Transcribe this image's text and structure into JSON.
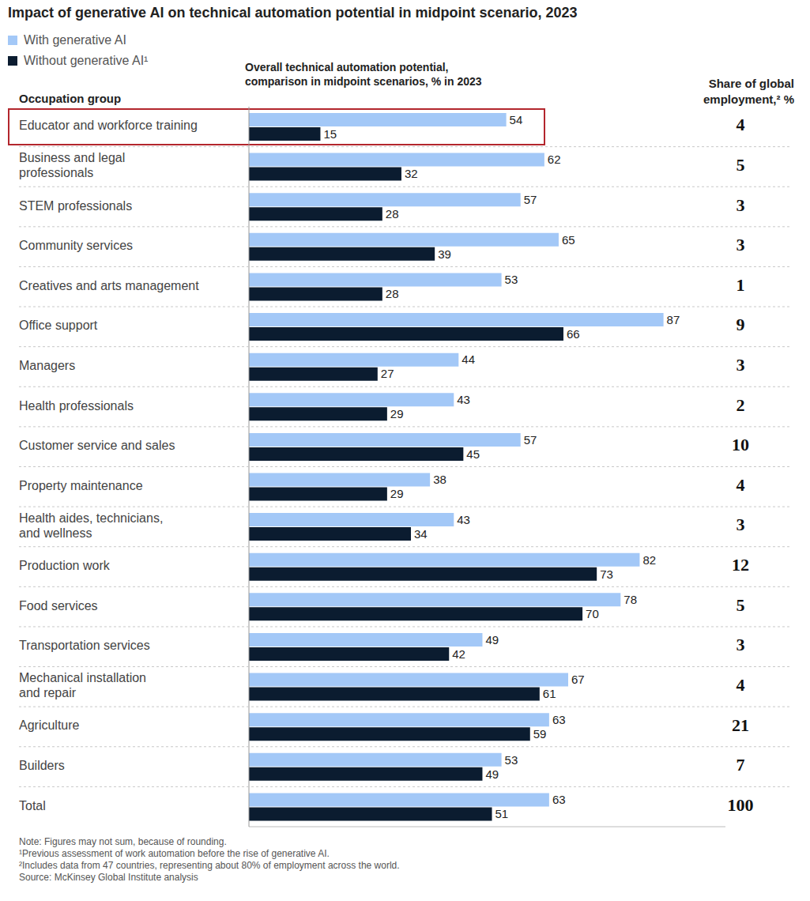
{
  "chart_data": {
    "type": "bar",
    "orientation": "horizontal",
    "title": "Impact of generative AI on technical automation potential in midpoint scenario, 2023",
    "y_label": "Occupation group",
    "x_label": "Overall technical automation potential, comparison in midpoint scenarios, % in 2023",
    "categories": [
      "Educator and workforce training",
      "Business and legal professionals",
      "STEM professionals",
      "Community services",
      "Creatives and arts management",
      "Office support",
      "Managers",
      "Health professionals",
      "Customer service and sales",
      "Property maintenance",
      "Health aides, technicians, and wellness",
      "Production work",
      "Food services",
      "Transportation services",
      "Mechanical installation and repair",
      "Agriculture",
      "Builders",
      "Total"
    ],
    "series": [
      {
        "name": "With generative AI",
        "color": "#a3c8f7",
        "values": [
          54,
          62,
          57,
          65,
          53,
          87,
          44,
          43,
          57,
          38,
          43,
          82,
          78,
          49,
          67,
          63,
          53,
          63
        ]
      },
      {
        "name": "Without generative AI¹",
        "color": "#0b1c30",
        "values": [
          15,
          32,
          28,
          39,
          28,
          66,
          27,
          29,
          45,
          29,
          34,
          73,
          70,
          42,
          61,
          59,
          49,
          51
        ]
      }
    ],
    "share_of_global_employment": {
      "label": "Share of global employment,² %",
      "values": [
        4,
        5,
        3,
        3,
        1,
        9,
        3,
        2,
        10,
        4,
        3,
        12,
        5,
        3,
        4,
        21,
        7,
        100
      ]
    },
    "xlim": [
      0,
      100
    ],
    "legend": "top-left",
    "data_labels": true,
    "tick_labels": "y",
    "notes": [
      "Note: Figures may not sum, because of rounding.",
      "¹Previous assessment of work automation before the rise of generative AI.",
      "²Includes data from 47 countries, representing about 80% of employment across the world.",
      "Source: McKinsey Global Institute analysis"
    ]
  }
}
